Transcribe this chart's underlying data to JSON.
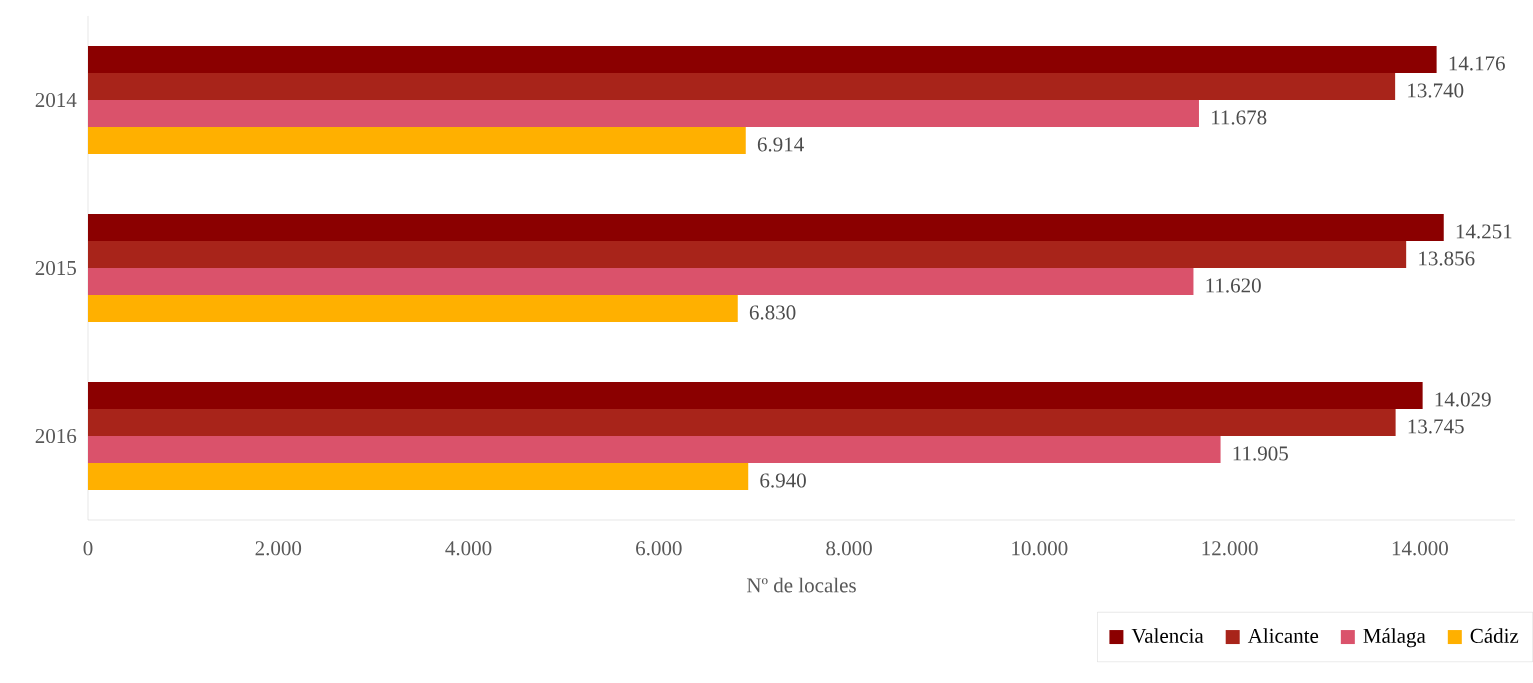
{
  "chart_data": {
    "type": "bar",
    "orientation": "horizontal",
    "xlabel": "Nº de locales",
    "categories": [
      "2014",
      "2015",
      "2016"
    ],
    "series": [
      {
        "name": "Valencia",
        "color": "#8b0000",
        "values": [
          14176,
          14251,
          14029
        ],
        "value_labels": [
          "14.176",
          "14.251",
          "14.029"
        ]
      },
      {
        "name": "Alicante",
        "color": "#a8241a",
        "values": [
          13740,
          13856,
          13745
        ],
        "value_labels": [
          "13.740",
          "13.856",
          "13.745"
        ]
      },
      {
        "name": "Málaga",
        "color": "#da526b",
        "values": [
          11678,
          11620,
          11905
        ],
        "value_labels": [
          "11.678",
          "11.620",
          "11.905"
        ]
      },
      {
        "name": "Cádiz",
        "color": "#ffb000",
        "values": [
          6914,
          6830,
          6940
        ],
        "value_labels": [
          "6.914",
          "6.830",
          "6.940"
        ]
      }
    ],
    "xlim": [
      0,
      15000
    ],
    "xticks": [
      0,
      {
        "value": 2000,
        "label": "2.000"
      },
      {
        "value": 4000,
        "label": "4.000"
      },
      {
        "value": 6000,
        "label": "6.000"
      },
      {
        "value": 8000,
        "label": "8.000"
      },
      {
        "value": 10000,
        "label": "10.000"
      },
      {
        "value": 12000,
        "label": "12.000"
      },
      {
        "value": 14000,
        "label": "14.000"
      }
    ],
    "legend": "bottom right",
    "grid": false
  }
}
